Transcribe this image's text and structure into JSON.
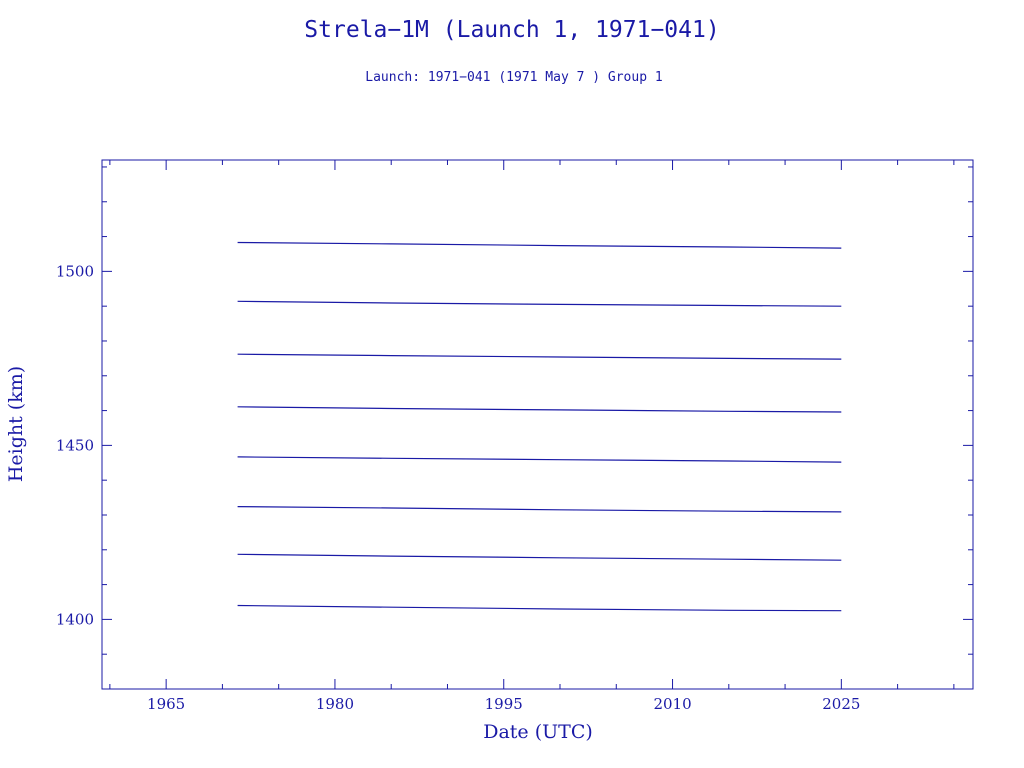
{
  "chart_data": {
    "type": "line",
    "title": "Strela−1M (Launch 1, 1971−041)",
    "subtitle": "Launch: 1971−041  (1971 May  7 )  Group 1",
    "xlabel": "Date (UTC)",
    "ylabel": "Height (km)",
    "xlim": [
      1959.3,
      2036.7
    ],
    "ylim": [
      1380,
      1532
    ],
    "xticks": [
      1965,
      1980,
      1995,
      2010,
      2025
    ],
    "xtick_labels": [
      "1965",
      "1980",
      "1995",
      "2010",
      "2025"
    ],
    "yticks": [
      1400,
      1450,
      1500
    ],
    "ytick_labels": [
      "1400",
      "1450",
      "1500"
    ],
    "grid": false,
    "series": [
      {
        "x": [
          1971.35,
          1985,
          2000,
          2015,
          2025.0
        ],
        "y": [
          1508.3,
          1507.9,
          1507.4,
          1507.0,
          1506.7
        ]
      },
      {
        "x": [
          1971.35,
          1985,
          2000,
          2015,
          2025.0
        ],
        "y": [
          1491.4,
          1490.9,
          1490.5,
          1490.2,
          1490.0
        ]
      },
      {
        "x": [
          1971.35,
          1985,
          2000,
          2015,
          2025.0
        ],
        "y": [
          1476.2,
          1475.8,
          1475.4,
          1475.0,
          1474.8
        ]
      },
      {
        "x": [
          1971.35,
          1985,
          2000,
          2015,
          2025.0
        ],
        "y": [
          1461.1,
          1460.6,
          1460.2,
          1459.8,
          1459.6
        ]
      },
      {
        "x": [
          1971.35,
          1985,
          2000,
          2015,
          2025.0
        ],
        "y": [
          1446.7,
          1446.3,
          1445.9,
          1445.5,
          1445.2
        ]
      },
      {
        "x": [
          1971.35,
          1985,
          2000,
          2015,
          2025.0
        ],
        "y": [
          1432.4,
          1432.0,
          1431.5,
          1431.1,
          1430.9
        ]
      },
      {
        "x": [
          1971.35,
          1985,
          2000,
          2015,
          2025.0
        ],
        "y": [
          1418.7,
          1418.2,
          1417.7,
          1417.3,
          1417.0
        ]
      },
      {
        "x": [
          1971.35,
          1985,
          2000,
          2015,
          2025.0
        ],
        "y": [
          1404.0,
          1403.5,
          1403.0,
          1402.6,
          1402.5
        ]
      }
    ],
    "line_color": "#1a1aa6"
  }
}
